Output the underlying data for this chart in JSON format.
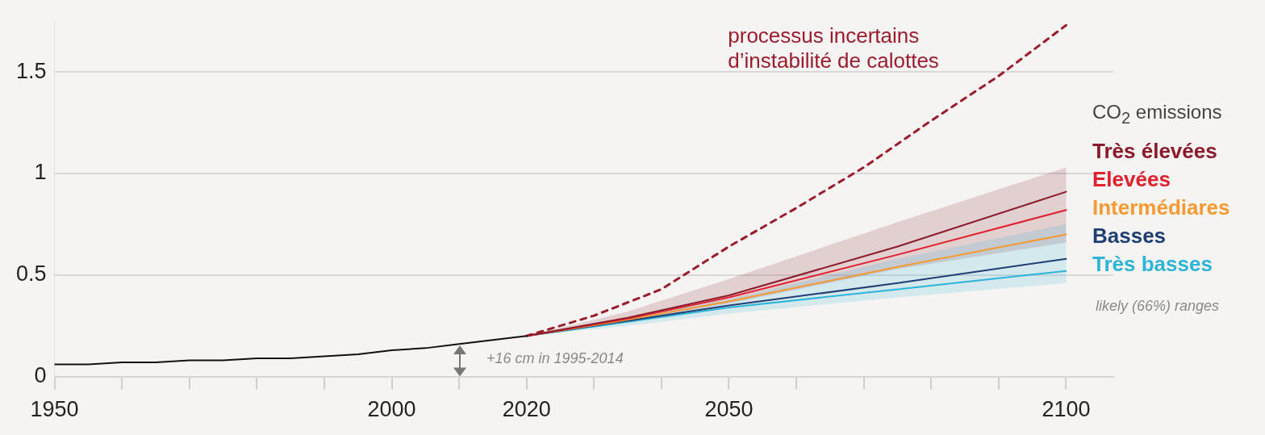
{
  "chart_data": {
    "type": "line",
    "legend_title": "CO$_{2}$ emissions",
    "legend": "right",
    "grid": "y",
    "marker": "none",
    "xlim": [
      1950,
      2107
    ],
    "xticks": [
      1950,
      {
        "value": 1960,
        "label": null
      },
      {
        "value": 1970,
        "label": null
      },
      {
        "value": 1980,
        "label": null
      },
      {
        "value": 1990,
        "label": null
      },
      2000,
      {
        "value": 2010,
        "label": null
      },
      2020,
      {
        "value": 2030,
        "label": null
      },
      {
        "value": 2040,
        "label": null
      },
      2050,
      {
        "value": 2060,
        "label": null
      },
      {
        "value": 2070,
        "label": null
      },
      {
        "value": 2080,
        "label": null
      },
      {
        "value": 2090,
        "label": null
      },
      2100
    ],
    "ylim": [
      0,
      1.75
    ],
    "yticks": [
      0,
      0.5,
      1,
      1.5
    ],
    "series": [
      {
        "color": "#111111",
        "line_style": "solid",
        "x": [
          1950,
          1955,
          1960,
          1965,
          1970,
          1975,
          1980,
          1985,
          1990,
          1995,
          2000,
          2005,
          2010,
          2015,
          2020
        ],
        "values": [
          0.06,
          0.06,
          0.07,
          0.07,
          0.08,
          0.08,
          0.09,
          0.09,
          0.1,
          0.11,
          0.13,
          0.14,
          0.16,
          0.18,
          0.2
        ]
      },
      {
        "color": "#9b1c2c",
        "line_style": "dashed",
        "x": [
          2020,
          2030,
          2040,
          2050,
          2060,
          2070,
          2080,
          2090,
          2100
        ],
        "values": [
          0.2,
          0.3,
          0.43,
          0.64,
          0.83,
          1.03,
          1.26,
          1.48,
          1.73
        ]
      },
      {
        "name": "Très élevées",
        "color": "#8b1a2b",
        "line_style": "solid",
        "x": [
          2020,
          2035,
          2050,
          2075,
          2100
        ],
        "values": [
          0.2,
          0.29,
          0.4,
          0.64,
          0.91
        ],
        "lower": [
          0.2,
          0.27,
          0.36,
          0.53,
          0.66
        ],
        "upper": [
          0.2,
          0.32,
          0.48,
          0.76,
          1.03
        ]
      },
      {
        "name": "Elevées",
        "color": "#e0202e",
        "line_style": "solid",
        "x": [
          2020,
          2035,
          2050,
          2075,
          2100
        ],
        "values": [
          0.2,
          0.285,
          0.39,
          0.6,
          0.82
        ]
      },
      {
        "name": "Intermédiares",
        "color": "#f39a32",
        "line_style": "solid",
        "x": [
          2020,
          2035,
          2050,
          2075,
          2100
        ],
        "values": [
          0.2,
          0.28,
          0.37,
          0.54,
          0.7
        ]
      },
      {
        "name": "Basses",
        "color": "#1f3f73",
        "line_style": "solid",
        "x": [
          2020,
          2035,
          2050,
          2075,
          2100
        ],
        "values": [
          0.2,
          0.275,
          0.35,
          0.46,
          0.58
        ]
      },
      {
        "name": "Très basses",
        "color": "#2db4d8",
        "line_style": "solid",
        "x": [
          2020,
          2035,
          2050,
          2075,
          2100
        ],
        "values": [
          0.2,
          0.27,
          0.34,
          0.43,
          0.52
        ],
        "lower": [
          0.2,
          0.25,
          0.31,
          0.39,
          0.46
        ],
        "upper": [
          0.2,
          0.29,
          0.38,
          0.58,
          0.75
        ]
      }
    ],
    "annotations": [
      "processus incertains\nd’instabilité de calottes",
      "+16 cm in 1995-2014",
      "likely (66%) ranges"
    ]
  }
}
